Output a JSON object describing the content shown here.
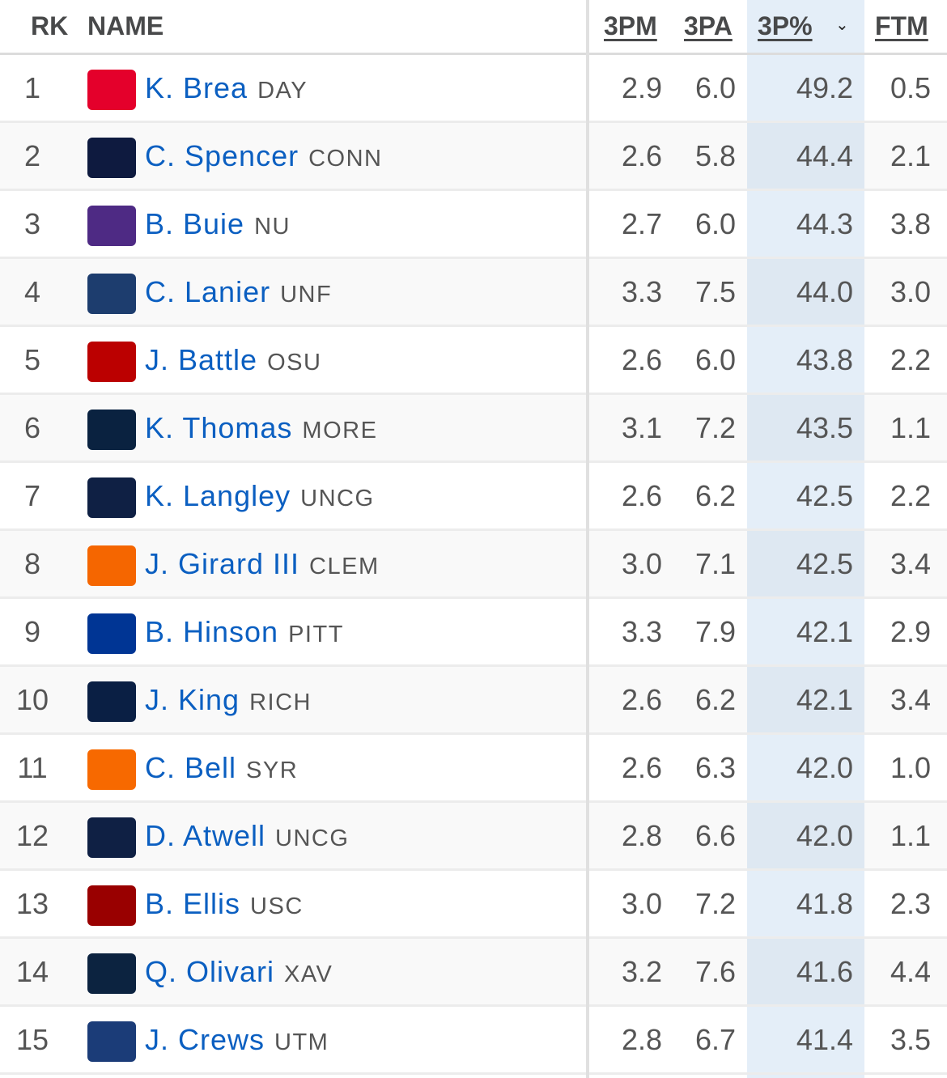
{
  "headers": {
    "rk": "RK",
    "name": "NAME",
    "c1": "3PM",
    "c2": "3PA",
    "c3": "3P%",
    "c4": "FTM"
  },
  "sort_icon": "chevron-down-icon",
  "highlight_color": "#e4eef8",
  "link_color": "#0b5fc1",
  "rows": [
    {
      "rk": "1",
      "name": "K. Brea",
      "team": "DAY",
      "logo_color": "#e4002b",
      "c1": "2.9",
      "c2": "6.0",
      "c3": "49.2",
      "c4": "0.5"
    },
    {
      "rk": "2",
      "name": "C. Spencer",
      "team": "CONN",
      "logo_color": "#0e1a3f",
      "c1": "2.6",
      "c2": "5.8",
      "c3": "44.4",
      "c4": "2.1"
    },
    {
      "rk": "3",
      "name": "B. Buie",
      "team": "NU",
      "logo_color": "#4e2a84",
      "c1": "2.7",
      "c2": "6.0",
      "c3": "44.3",
      "c4": "3.8"
    },
    {
      "rk": "4",
      "name": "C. Lanier",
      "team": "UNF",
      "logo_color": "#1d3d6e",
      "c1": "3.3",
      "c2": "7.5",
      "c3": "44.0",
      "c4": "3.0"
    },
    {
      "rk": "5",
      "name": "J. Battle",
      "team": "OSU",
      "logo_color": "#bb0000",
      "c1": "2.6",
      "c2": "6.0",
      "c3": "43.8",
      "c4": "2.2"
    },
    {
      "rk": "6",
      "name": "K. Thomas",
      "team": "MORE",
      "logo_color": "#0a2240",
      "c1": "3.1",
      "c2": "7.2",
      "c3": "43.5",
      "c4": "1.1"
    },
    {
      "rk": "7",
      "name": "K. Langley",
      "team": "UNCG",
      "logo_color": "#0f2044",
      "c1": "2.6",
      "c2": "6.2",
      "c3": "42.5",
      "c4": "2.2"
    },
    {
      "rk": "8",
      "name": "J. Girard III",
      "team": "CLEM",
      "logo_color": "#f56600",
      "c1": "3.0",
      "c2": "7.1",
      "c3": "42.5",
      "c4": "3.4"
    },
    {
      "rk": "9",
      "name": "B. Hinson",
      "team": "PITT",
      "logo_color": "#003594",
      "c1": "3.3",
      "c2": "7.9",
      "c3": "42.1",
      "c4": "2.9"
    },
    {
      "rk": "10",
      "name": "J. King",
      "team": "RICH",
      "logo_color": "#0a1f44",
      "c1": "2.6",
      "c2": "6.2",
      "c3": "42.1",
      "c4": "3.4"
    },
    {
      "rk": "11",
      "name": "C. Bell",
      "team": "SYR",
      "logo_color": "#f76900",
      "c1": "2.6",
      "c2": "6.3",
      "c3": "42.0",
      "c4": "1.0"
    },
    {
      "rk": "12",
      "name": "D. Atwell",
      "team": "UNCG",
      "logo_color": "#0f2044",
      "c1": "2.8",
      "c2": "6.6",
      "c3": "42.0",
      "c4": "1.1"
    },
    {
      "rk": "13",
      "name": "B. Ellis",
      "team": "USC",
      "logo_color": "#990000",
      "c1": "3.0",
      "c2": "7.2",
      "c3": "41.8",
      "c4": "2.3"
    },
    {
      "rk": "14",
      "name": "Q. Olivari",
      "team": "XAV",
      "logo_color": "#0c2340",
      "c1": "3.2",
      "c2": "7.6",
      "c3": "41.6",
      "c4": "4.4"
    },
    {
      "rk": "15",
      "name": "J. Crews",
      "team": "UTM",
      "logo_color": "#1b3c78",
      "c1": "2.8",
      "c2": "6.7",
      "c3": "41.4",
      "c4": "3.5"
    }
  ]
}
